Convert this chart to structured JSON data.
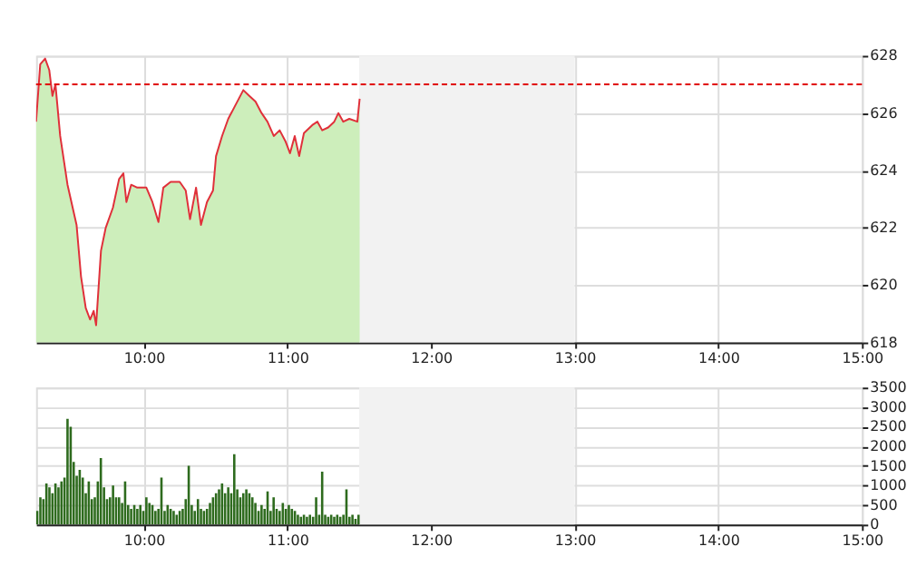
{
  "chart_data": [
    {
      "type": "area",
      "xlim": [
        9.25,
        15
      ],
      "ylim": [
        618,
        628
      ],
      "yticks": [
        618,
        620,
        622,
        624,
        626,
        628
      ],
      "xticks": [
        {
          "value": 10,
          "label": "10:00"
        },
        {
          "value": 11,
          "label": "11:00"
        },
        {
          "value": 12,
          "label": "12:00"
        },
        {
          "value": 13,
          "label": "13:00"
        },
        {
          "value": 14,
          "label": "14:00"
        },
        {
          "value": 15,
          "label": "15:00"
        }
      ],
      "grid": true,
      "ref_lines": [
        {
          "axis": "y",
          "value": 627,
          "color": "#e00000",
          "line_style": "dashed"
        }
      ],
      "bands": [
        {
          "axis": "x",
          "from": 11.5,
          "to": 13,
          "color": "#f2f2f2"
        }
      ],
      "x": [
        9.25,
        9.279,
        9.313,
        9.342,
        9.364,
        9.385,
        9.418,
        9.469,
        9.532,
        9.563,
        9.596,
        9.626,
        9.651,
        9.668,
        9.702,
        9.735,
        9.785,
        9.828,
        9.858,
        9.879,
        9.912,
        9.955,
        10.018,
        10.06,
        10.102,
        10.136,
        10.187,
        10.25,
        10.292,
        10.322,
        10.364,
        10.398,
        10.44,
        10.482,
        10.503,
        10.545,
        10.588,
        10.63,
        10.693,
        10.735,
        10.778,
        10.82,
        10.861,
        10.905,
        10.946,
        10.988,
        11.018,
        11.051,
        11.082,
        11.115,
        11.178,
        11.209,
        11.242,
        11.284,
        11.326,
        11.355,
        11.389,
        11.431,
        11.487,
        11.503
      ],
      "series": [
        {
          "type": "area",
          "color": "#cdeebb",
          "values": [
            625.7,
            627.7,
            627.9,
            627.5,
            626.6,
            627.0,
            625.2,
            623.5,
            622.1,
            620.3,
            619.2,
            618.8,
            619.1,
            618.6,
            621.2,
            622.0,
            622.7,
            623.7,
            623.9,
            622.9,
            623.5,
            623.4,
            623.4,
            622.9,
            622.2,
            623.4,
            623.6,
            623.6,
            623.3,
            622.3,
            623.4,
            622.1,
            622.9,
            623.3,
            624.5,
            625.2,
            625.8,
            626.2,
            626.8,
            626.6,
            626.4,
            626.0,
            625.7,
            625.2,
            625.4,
            625.0,
            624.6,
            625.2,
            624.5,
            625.3,
            625.6,
            625.7,
            625.4,
            625.5,
            625.7,
            626.0,
            625.7,
            625.8,
            625.7,
            626.5
          ]
        },
        {
          "type": "line",
          "color": "#e0303a",
          "values": [
            625.7,
            627.7,
            627.9,
            627.5,
            626.6,
            627.0,
            625.2,
            623.5,
            622.1,
            620.3,
            619.2,
            618.8,
            619.1,
            618.6,
            621.2,
            622.0,
            622.7,
            623.7,
            623.9,
            622.9,
            623.5,
            623.4,
            623.4,
            622.9,
            622.2,
            623.4,
            623.6,
            623.6,
            623.3,
            622.3,
            623.4,
            622.1,
            622.9,
            623.3,
            624.5,
            625.2,
            625.8,
            626.2,
            626.8,
            626.6,
            626.4,
            626.0,
            625.7,
            625.2,
            625.4,
            625.0,
            624.6,
            625.2,
            624.5,
            625.3,
            625.6,
            625.7,
            625.4,
            625.5,
            625.7,
            626.0,
            625.7,
            625.8,
            625.7,
            626.5
          ]
        }
      ]
    },
    {
      "type": "bar",
      "xlim": [
        9.25,
        15
      ],
      "ylim": [
        0,
        3500
      ],
      "yticks": [
        0,
        500,
        1000,
        1500,
        2000,
        2500,
        3000,
        3500
      ],
      "xticks": [
        {
          "value": 10,
          "label": "10:00"
        },
        {
          "value": 11,
          "label": "11:00"
        },
        {
          "value": 12,
          "label": "12:00"
        },
        {
          "value": 13,
          "label": "13:00"
        },
        {
          "value": 14,
          "label": "14:00"
        },
        {
          "value": 15,
          "label": "15:00"
        }
      ],
      "grid": true,
      "bands": [
        {
          "axis": "x",
          "from": 11.5,
          "to": 13,
          "color": "#f2f2f2"
        }
      ],
      "x": [
        9.258,
        9.28,
        9.301,
        9.322,
        9.343,
        9.364,
        9.385,
        9.406,
        9.427,
        9.448,
        9.469,
        9.491,
        9.512,
        9.533,
        9.554,
        9.575,
        9.596,
        9.617,
        9.638,
        9.659,
        9.68,
        9.701,
        9.723,
        9.744,
        9.765,
        9.786,
        9.807,
        9.828,
        9.849,
        9.87,
        9.891,
        9.912,
        9.934,
        9.955,
        9.976,
        9.997,
        10.018,
        10.039,
        10.06,
        10.081,
        10.102,
        10.123,
        10.145,
        10.166,
        10.187,
        10.208,
        10.229,
        10.25,
        10.271,
        10.292,
        10.313,
        10.334,
        10.355,
        10.377,
        10.398,
        10.419,
        10.44,
        10.461,
        10.482,
        10.503,
        10.524,
        10.545,
        10.566,
        10.588,
        10.609,
        10.63,
        10.651,
        10.672,
        10.693,
        10.714,
        10.735,
        10.756,
        10.777,
        10.799,
        10.82,
        10.841,
        10.862,
        10.883,
        10.904,
        10.925,
        10.946,
        10.968,
        10.989,
        11.01,
        11.031,
        11.052,
        11.073,
        11.094,
        11.115,
        11.136,
        11.157,
        11.179,
        11.2,
        11.221,
        11.242,
        11.263,
        11.284,
        11.305,
        11.326,
        11.347,
        11.368,
        11.39,
        11.411,
        11.432,
        11.453,
        11.474,
        11.495
      ],
      "series": [
        {
          "color": "#2e6b1e",
          "values": [
            350,
            700,
            650,
            1050,
            950,
            800,
            1050,
            950,
            1100,
            1200,
            2700,
            2500,
            1600,
            1250,
            1400,
            1200,
            800,
            1100,
            650,
            700,
            1100,
            1700,
            950,
            650,
            700,
            1000,
            700,
            700,
            550,
            1100,
            500,
            400,
            500,
            400,
            500,
            350,
            700,
            550,
            500,
            350,
            400,
            1200,
            350,
            500,
            400,
            350,
            250,
            350,
            400,
            650,
            1500,
            500,
            350,
            650,
            400,
            350,
            400,
            550,
            700,
            800,
            900,
            1050,
            800,
            950,
            800,
            1800,
            900,
            700,
            800,
            900,
            800,
            700,
            550,
            350,
            500,
            400,
            850,
            350,
            700,
            400,
            350,
            550,
            400,
            500,
            400,
            350,
            250,
            200,
            250,
            200,
            250,
            200,
            700,
            250,
            1350,
            250,
            200,
            250,
            200,
            250,
            200,
            250,
            900,
            200,
            250,
            150,
            250
          ]
        }
      ]
    }
  ]
}
